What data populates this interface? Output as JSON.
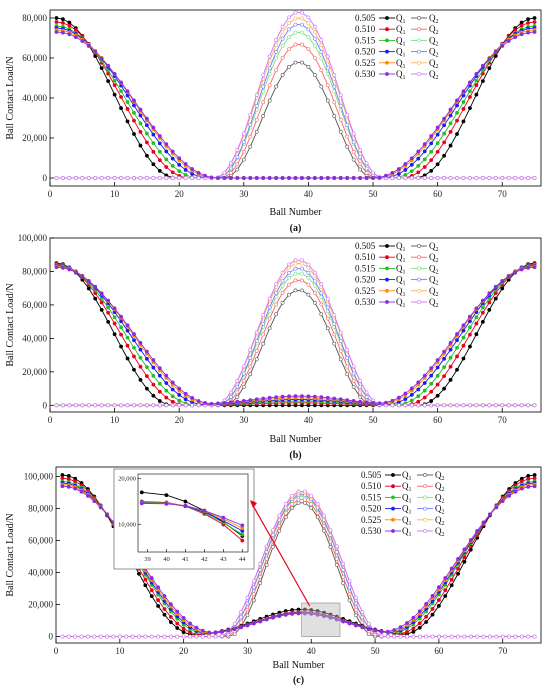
{
  "figure": {
    "legend_values": [
      "0.505",
      "0.510",
      "0.515",
      "0.520",
      "0.525",
      "0.530"
    ],
    "legend_q1": "Q",
    "legend_q1_sub": "1",
    "legend_q2": "Q",
    "legend_q2_sub": "2",
    "q1_colors": [
      "#000000",
      "#e8001c",
      "#22c022",
      "#1a1aff",
      "#ff8c00",
      "#8a2be2"
    ],
    "q2_colors": [
      "#555555",
      "#ff6060",
      "#7ee07e",
      "#6c7cff",
      "#ffb050",
      "#d070ff"
    ]
  },
  "chart_data": [
    {
      "id": "a",
      "type": "line",
      "caption": "(a)",
      "xlabel": "Ball Number",
      "ylabel": "Ball Contact Load/N",
      "xlim": [
        0,
        76
      ],
      "ylim": [
        -4000,
        84000
      ],
      "xticks": [
        0,
        10,
        20,
        30,
        40,
        50,
        60,
        70
      ],
      "yticks": [
        0,
        20000,
        40000,
        60000,
        80000
      ],
      "ytick_labels": [
        "0",
        "20,000",
        "40,000",
        "60,000",
        "80,000"
      ],
      "series": [
        {
          "name": "0.505",
          "q1_peak": 80000,
          "q1_zero_end": 19.5,
          "q2_peak": 58000,
          "q2_start": 27,
          "q2_end": 50
        },
        {
          "name": "0.510",
          "q1_peak": 78000,
          "q1_zero_end": 21.5,
          "q2_peak": 67000,
          "q2_start": 26.5,
          "q2_end": 50.5
        },
        {
          "name": "0.515",
          "q1_peak": 76000,
          "q1_zero_end": 23,
          "q2_peak": 73000,
          "q2_start": 26,
          "q2_end": 51
        },
        {
          "name": "0.520",
          "q1_peak": 75000,
          "q1_zero_end": 24.5,
          "q2_peak": 77000,
          "q2_start": 26,
          "q2_end": 51
        },
        {
          "name": "0.525",
          "q1_peak": 74000,
          "q1_zero_end": 25.5,
          "q2_peak": 80000,
          "q2_start": 25.5,
          "q2_end": 51.5
        },
        {
          "name": "0.530",
          "q1_peak": 73000,
          "q1_zero_end": 26,
          "q2_peak": 83000,
          "q2_start": 25.5,
          "q2_end": 51.5
        }
      ]
    },
    {
      "id": "b",
      "type": "line",
      "caption": "(b)",
      "xlabel": "Ball Number",
      "ylabel": "Ball Contact Load/N",
      "xlim": [
        0,
        76
      ],
      "ylim": [
        -4000,
        100000
      ],
      "xticks": [
        0,
        10,
        20,
        30,
        40,
        50,
        60,
        70
      ],
      "yticks": [
        0,
        20000,
        40000,
        60000,
        80000,
        100000
      ],
      "ytick_labels": [
        "0",
        "20,000",
        "40,000",
        "60,000",
        "80,000",
        "100,000"
      ],
      "series": [
        {
          "name": "0.505",
          "q1_peak": 85000,
          "q1_mid": 0,
          "q1_zero_end": 19,
          "q2_peak": 69000,
          "q2_start": 27,
          "q2_end": 50
        },
        {
          "name": "0.510",
          "q1_peak": 84500,
          "q1_mid": 1500,
          "q1_zero_end": 21,
          "q2_peak": 75000,
          "q2_start": 26.5,
          "q2_end": 50.5
        },
        {
          "name": "0.515",
          "q1_peak": 84000,
          "q1_mid": 2500,
          "q1_zero_end": 22.5,
          "q2_peak": 79000,
          "q2_start": 26,
          "q2_end": 51
        },
        {
          "name": "0.520",
          "q1_peak": 83500,
          "q1_mid": 3500,
          "q1_zero_end": 24,
          "q2_peak": 82000,
          "q2_start": 26,
          "q2_end": 51
        },
        {
          "name": "0.525",
          "q1_peak": 83000,
          "q1_mid": 4500,
          "q1_zero_end": 25,
          "q2_peak": 85000,
          "q2_start": 25.5,
          "q2_end": 51.5
        },
        {
          "name": "0.530",
          "q1_peak": 82500,
          "q1_mid": 5500,
          "q1_zero_end": 25.5,
          "q2_peak": 87000,
          "q2_start": 25.5,
          "q2_end": 51.5
        }
      ]
    },
    {
      "id": "c",
      "type": "line",
      "caption": "(c)",
      "xlabel": "Ball Number",
      "ylabel": "Ball Contact Load/N",
      "xlim": [
        0,
        76
      ],
      "ylim": [
        -4000,
        106000
      ],
      "xticks": [
        0,
        10,
        20,
        30,
        40,
        50,
        60,
        70
      ],
      "yticks": [
        0,
        20000,
        40000,
        60000,
        80000,
        100000
      ],
      "ytick_labels": [
        "0",
        "20,000",
        "40,000",
        "60,000",
        "80,000",
        "100,000"
      ],
      "series": [
        {
          "name": "0.505",
          "q1_peak": 101000,
          "q1_mid": 17000,
          "q1_zero_end": 22,
          "q2_peak": 84000,
          "q2_start": 27,
          "q2_end": 50
        },
        {
          "name": "0.510",
          "q1_peak": 99000,
          "q1_mid": 15500,
          "q1_zero_end": 23,
          "q2_peak": 86000,
          "q2_start": 26.5,
          "q2_end": 50.5
        },
        {
          "name": "0.515",
          "q1_peak": 97000,
          "q1_mid": 15000,
          "q1_zero_end": 24,
          "q2_peak": 88000,
          "q2_start": 26,
          "q2_end": 51
        },
        {
          "name": "0.520",
          "q1_peak": 96000,
          "q1_mid": 14800,
          "q1_zero_end": 24.5,
          "q2_peak": 89000,
          "q2_start": 26,
          "q2_end": 51
        },
        {
          "name": "0.525",
          "q1_peak": 95000,
          "q1_mid": 14600,
          "q1_zero_end": 25,
          "q2_peak": 90000,
          "q2_start": 25.5,
          "q2_end": 51.5
        },
        {
          "name": "0.530",
          "q1_peak": 94000,
          "q1_mid": 14500,
          "q1_zero_end": 25.5,
          "q2_peak": 91000,
          "q2_start": 25.5,
          "q2_end": 51.5
        }
      ],
      "inset": {
        "xlim": [
          38.5,
          44.3
        ],
        "ylim": [
          4000,
          21000
        ],
        "xticks": [
          39,
          40,
          41,
          42,
          43,
          44
        ],
        "yticks": [
          10000,
          20000
        ],
        "ytick_labels": [
          "10,000",
          "20,000"
        ],
        "series": [
          {
            "name": "0.505",
            "x": [
              38.7,
              40,
              41,
              42,
              43,
              44
            ],
            "y": [
              17000,
              16400,
              15000,
              13000,
              10500,
              7500
            ]
          },
          {
            "name": "0.510",
            "x": [
              38.7,
              40,
              41,
              42,
              43,
              44
            ],
            "y": [
              15000,
              14800,
              14000,
              12300,
              10000,
              6500
            ]
          },
          {
            "name": "0.515",
            "x": [
              38.7,
              40,
              41,
              42,
              43,
              44
            ],
            "y": [
              14900,
              14700,
              14000,
              12500,
              10400,
              7800
            ]
          },
          {
            "name": "0.520",
            "x": [
              38.7,
              40,
              41,
              42,
              43,
              44
            ],
            "y": [
              14800,
              14600,
              14000,
              12700,
              10800,
              8600
            ]
          },
          {
            "name": "0.525",
            "x": [
              38.7,
              40,
              41,
              42,
              43,
              44
            ],
            "y": [
              14700,
              14600,
              14100,
              12900,
              11200,
              9200
            ]
          },
          {
            "name": "0.530",
            "x": [
              38.7,
              40,
              41,
              42,
              43,
              44
            ],
            "y": [
              14600,
              14500,
              14100,
              13000,
              11500,
              9800
            ]
          }
        ]
      }
    }
  ]
}
